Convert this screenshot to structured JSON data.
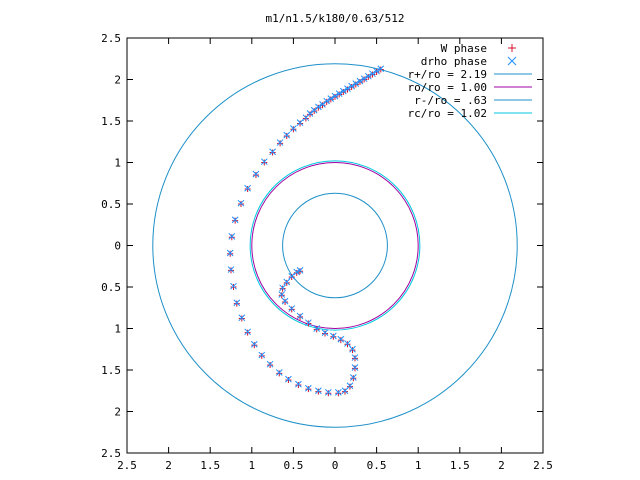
{
  "chart_data": {
    "type": "scatter",
    "title": "m1/n1.5/k180/0.63/512",
    "xlim": [
      -2.5,
      2.5
    ],
    "ylim": [
      -2.5,
      2.5
    ],
    "x_ticks": [
      {
        "value": -2.5,
        "label": "2.5"
      },
      {
        "value": -2,
        "label": "2"
      },
      {
        "value": -1.5,
        "label": "1.5"
      },
      {
        "value": -1,
        "label": "1"
      },
      {
        "value": -0.5,
        "label": "0.5"
      },
      {
        "value": 0,
        "label": "0"
      },
      {
        "value": 0.5,
        "label": "0.5"
      },
      {
        "value": 1,
        "label": "1"
      },
      {
        "value": 1.5,
        "label": "1.5"
      },
      {
        "value": 2,
        "label": "2"
      },
      {
        "value": 2.5,
        "label": "2.5"
      }
    ],
    "y_ticks": [
      {
        "value": 2.5,
        "label": "2.5"
      },
      {
        "value": 2,
        "label": "2"
      },
      {
        "value": 1.5,
        "label": "1.5"
      },
      {
        "value": 1,
        "label": "1"
      },
      {
        "value": 0.5,
        "label": "0.5"
      },
      {
        "value": 0,
        "label": "0"
      },
      {
        "value": -0.5,
        "label": "0.5"
      },
      {
        "value": -1,
        "label": "1"
      },
      {
        "value": -1.5,
        "label": "1.5"
      },
      {
        "value": -2,
        "label": "2"
      },
      {
        "value": -2.5,
        "label": "2.5"
      }
    ],
    "grid": false,
    "legend_position": "top-right",
    "series": [
      {
        "name": "W phase",
        "marker": "+",
        "color": "#d01030",
        "points": [
          [
            0.55,
            2.12
          ],
          [
            0.5,
            2.09
          ],
          [
            0.45,
            2.06
          ],
          [
            0.4,
            2.03
          ],
          [
            0.35,
            2.0
          ],
          [
            0.3,
            1.97
          ],
          [
            0.25,
            1.94
          ],
          [
            0.2,
            1.91
          ],
          [
            0.15,
            1.88
          ],
          [
            0.1,
            1.85
          ],
          [
            0.05,
            1.82
          ],
          [
            0.0,
            1.79
          ],
          [
            -0.05,
            1.76
          ],
          [
            -0.1,
            1.73
          ],
          [
            -0.15,
            1.69
          ],
          [
            -0.2,
            1.66
          ],
          [
            -0.25,
            1.62
          ],
          [
            -0.3,
            1.58
          ],
          [
            -0.35,
            1.53
          ],
          [
            -0.42,
            1.47
          ],
          [
            -0.5,
            1.4
          ],
          [
            -0.58,
            1.32
          ],
          [
            -0.66,
            1.23
          ],
          [
            -0.75,
            1.12
          ],
          [
            -0.85,
            1.0
          ],
          [
            -0.95,
            0.85
          ],
          [
            -1.05,
            0.68
          ],
          [
            -1.13,
            0.5
          ],
          [
            -1.2,
            0.3
          ],
          [
            -1.24,
            0.1
          ],
          [
            -1.26,
            -0.1
          ],
          [
            -1.25,
            -0.3
          ],
          [
            -1.22,
            -0.5
          ],
          [
            -1.18,
            -0.7
          ],
          [
            -1.12,
            -0.88
          ],
          [
            -1.05,
            -1.05
          ],
          [
            -0.97,
            -1.2
          ],
          [
            -0.88,
            -1.33
          ],
          [
            -0.78,
            -1.44
          ],
          [
            -0.67,
            -1.54
          ],
          [
            -0.56,
            -1.62
          ],
          [
            -0.44,
            -1.68
          ],
          [
            -0.32,
            -1.73
          ],
          [
            -0.2,
            -1.76
          ],
          [
            -0.08,
            -1.78
          ],
          [
            0.04,
            -1.78
          ],
          [
            0.12,
            -1.76
          ],
          [
            0.18,
            -1.7
          ],
          [
            0.22,
            -1.6
          ],
          [
            0.24,
            -1.48
          ],
          [
            0.24,
            -1.36
          ],
          [
            0.21,
            -1.26
          ],
          [
            0.15,
            -1.19
          ],
          [
            0.07,
            -1.14
          ],
          [
            -0.02,
            -1.1
          ],
          [
            -0.12,
            -1.06
          ],
          [
            -0.22,
            -1.01
          ],
          [
            -0.32,
            -0.94
          ],
          [
            -0.42,
            -0.86
          ],
          [
            -0.52,
            -0.77
          ],
          [
            -0.6,
            -0.68
          ],
          [
            -0.64,
            -0.6
          ],
          [
            -0.63,
            -0.52
          ],
          [
            -0.58,
            -0.45
          ],
          [
            -0.52,
            -0.38
          ],
          [
            -0.46,
            -0.33
          ],
          [
            -0.42,
            -0.31
          ]
        ]
      },
      {
        "name": "drho phase",
        "marker": "x",
        "color": "#1e90ff",
        "points": [
          [
            0.55,
            2.13
          ],
          [
            0.5,
            2.1
          ],
          [
            0.45,
            2.07
          ],
          [
            0.4,
            2.04
          ],
          [
            0.35,
            2.01
          ],
          [
            0.3,
            1.98
          ],
          [
            0.25,
            1.95
          ],
          [
            0.2,
            1.92
          ],
          [
            0.15,
            1.89
          ],
          [
            0.1,
            1.86
          ],
          [
            0.05,
            1.83
          ],
          [
            0.0,
            1.8
          ],
          [
            -0.05,
            1.77
          ],
          [
            -0.1,
            1.74
          ],
          [
            -0.15,
            1.7
          ],
          [
            -0.2,
            1.67
          ],
          [
            -0.25,
            1.63
          ],
          [
            -0.3,
            1.59
          ],
          [
            -0.35,
            1.54
          ],
          [
            -0.42,
            1.48
          ],
          [
            -0.5,
            1.41
          ],
          [
            -0.58,
            1.33
          ],
          [
            -0.66,
            1.24
          ],
          [
            -0.75,
            1.13
          ],
          [
            -0.85,
            1.01
          ],
          [
            -0.95,
            0.86
          ],
          [
            -1.05,
            0.69
          ],
          [
            -1.13,
            0.51
          ],
          [
            -1.2,
            0.31
          ],
          [
            -1.24,
            0.11
          ],
          [
            -1.26,
            -0.09
          ],
          [
            -1.25,
            -0.29
          ],
          [
            -1.22,
            -0.49
          ],
          [
            -1.18,
            -0.69
          ],
          [
            -1.12,
            -0.87
          ],
          [
            -1.05,
            -1.04
          ],
          [
            -0.97,
            -1.19
          ],
          [
            -0.88,
            -1.32
          ],
          [
            -0.78,
            -1.43
          ],
          [
            -0.67,
            -1.53
          ],
          [
            -0.56,
            -1.61
          ],
          [
            -0.44,
            -1.67
          ],
          [
            -0.32,
            -1.72
          ],
          [
            -0.2,
            -1.75
          ],
          [
            -0.08,
            -1.77
          ],
          [
            0.04,
            -1.77
          ],
          [
            0.12,
            -1.75
          ],
          [
            0.18,
            -1.69
          ],
          [
            0.22,
            -1.59
          ],
          [
            0.24,
            -1.47
          ],
          [
            0.24,
            -1.35
          ],
          [
            0.21,
            -1.25
          ],
          [
            0.15,
            -1.18
          ],
          [
            0.07,
            -1.13
          ],
          [
            -0.02,
            -1.09
          ],
          [
            -0.12,
            -1.05
          ],
          [
            -0.22,
            -1.0
          ],
          [
            -0.32,
            -0.93
          ],
          [
            -0.42,
            -0.85
          ],
          [
            -0.52,
            -0.76
          ],
          [
            -0.6,
            -0.67
          ],
          [
            -0.64,
            -0.59
          ],
          [
            -0.63,
            -0.51
          ],
          [
            -0.58,
            -0.44
          ],
          [
            -0.52,
            -0.37
          ],
          [
            -0.46,
            -0.32
          ],
          [
            -0.42,
            -0.3
          ]
        ]
      },
      {
        "name": "r+/ro = 2.19",
        "type": "circle",
        "radius": 2.19,
        "color": "#1e90c8"
      },
      {
        "name": "ro/ro = 1.00",
        "type": "circle",
        "radius": 1.0,
        "color": "#a000a0"
      },
      {
        "name": "r-/ro = .63",
        "type": "circle",
        "radius": 0.63,
        "color": "#1e90c8"
      },
      {
        "name": "rc/ro = 1.02",
        "type": "circle",
        "radius": 1.02,
        "color": "#00c8e0"
      }
    ]
  }
}
